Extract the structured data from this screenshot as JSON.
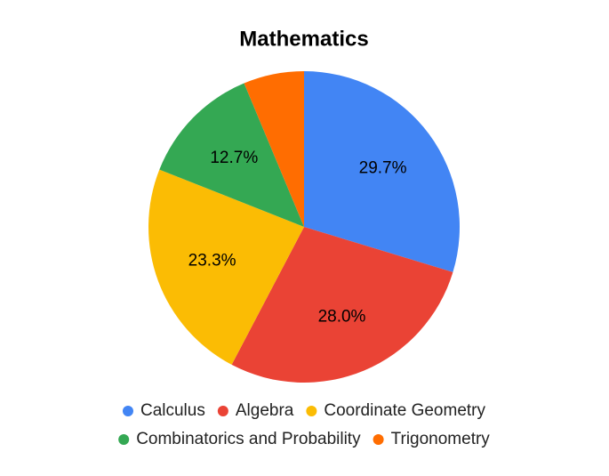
{
  "chart_data": {
    "type": "pie",
    "title": "Mathematics",
    "categories": [
      "Calculus",
      "Algebra",
      "Coordinate Geometry",
      "Combinatorics and Probability",
      "Trigonometry"
    ],
    "values": [
      29.7,
      28.0,
      23.3,
      12.7,
      6.3
    ],
    "value_labels": [
      "29.7%",
      "28.0%",
      "23.3%",
      "12.7%",
      null
    ],
    "colors": [
      "#4285f4",
      "#ea4335",
      "#fbbc04",
      "#34a853",
      "#ff6d01"
    ],
    "legend": "bottom"
  }
}
